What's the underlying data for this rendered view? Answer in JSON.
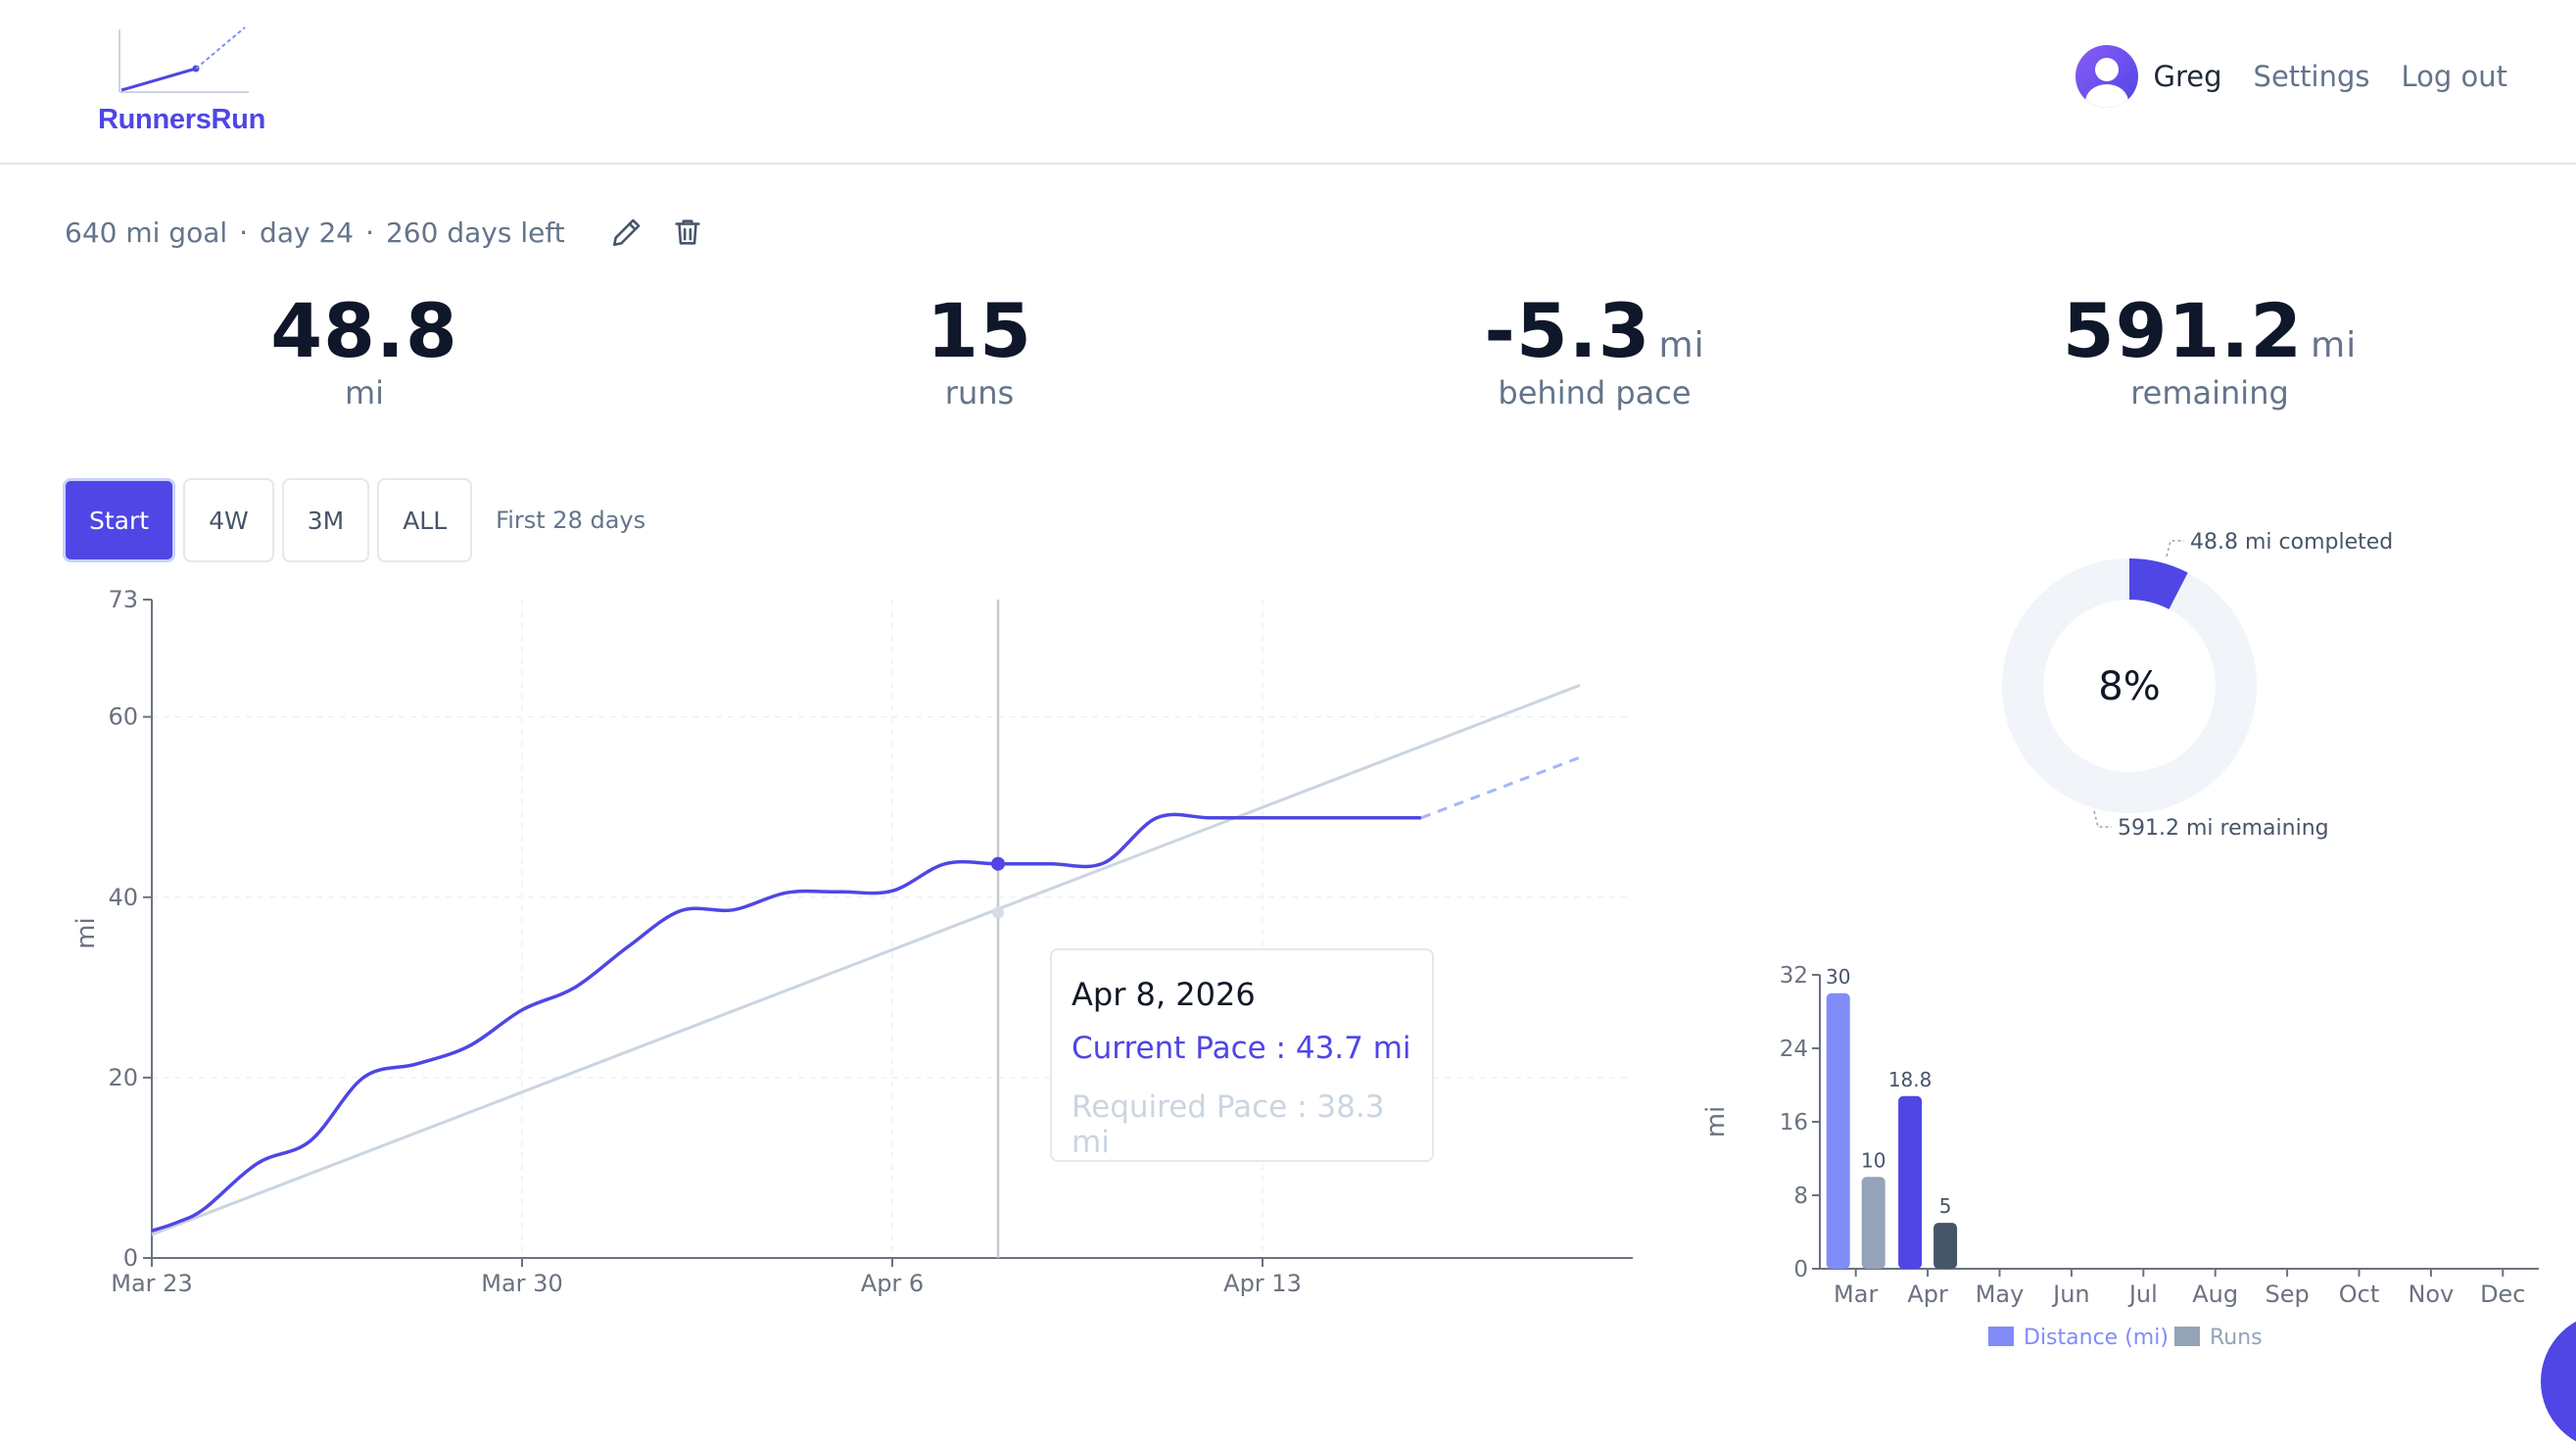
{
  "header": {
    "logo_text": "RunnersRun",
    "user_name": "Greg",
    "settings_label": "Settings",
    "logout_label": "Log out"
  },
  "goal": {
    "goal_text": "640 mi goal",
    "day_text": "day 24",
    "days_left_text": "260 days left",
    "separator": "·"
  },
  "stats": [
    {
      "value": "48.8",
      "unit": "",
      "label": "mi"
    },
    {
      "value": "15",
      "unit": "",
      "label": "runs"
    },
    {
      "value": "-5.3",
      "unit": "mi",
      "label": "behind pace"
    },
    {
      "value": "591.2",
      "unit": "mi",
      "label": "remaining"
    }
  ],
  "range": {
    "buttons": [
      "Start",
      "4W",
      "3M",
      "ALL"
    ],
    "active": "Start",
    "note": "First 28 days"
  },
  "tooltip": {
    "date": "Apr 8, 2026",
    "current": "Current Pace : 43.7 mi",
    "required": "Required Pace : 38.3 mi"
  },
  "donut": {
    "percent_label": "8%",
    "completed_label": "48.8 mi completed",
    "remaining_label": "591.2 mi remaining",
    "fraction": 0.076
  },
  "colors": {
    "accent": "#4f46e5",
    "distance": "#818cf8",
    "runs": "#94a3b8",
    "required": "#cbd5e1"
  },
  "chart_data": [
    {
      "type": "line",
      "ylabel": "mi",
      "xlim_days": [
        0,
        28
      ],
      "ylim": [
        0,
        73
      ],
      "x_ticks": [
        {
          "day": 0,
          "label": "Mar 23"
        },
        {
          "day": 7,
          "label": "Mar 30"
        },
        {
          "day": 14,
          "label": "Apr 6"
        },
        {
          "day": 21,
          "label": "Apr 13"
        }
      ],
      "y_ticks": [
        0,
        20,
        40,
        60,
        73
      ],
      "series": [
        {
          "name": "Current Pace",
          "points": [
            [
              0,
              3
            ],
            [
              0.5,
              4
            ],
            [
              1,
              5.5
            ],
            [
              2,
              10.5
            ],
            [
              3,
              13
            ],
            [
              4,
              20
            ],
            [
              5,
              21.5
            ],
            [
              6,
              23.5
            ],
            [
              7,
              27.5
            ],
            [
              8,
              30
            ],
            [
              9,
              34.5
            ],
            [
              10,
              38.5
            ],
            [
              11,
              38.6
            ],
            [
              12,
              40.5
            ],
            [
              13,
              40.6
            ],
            [
              14,
              40.7
            ],
            [
              15,
              43.7
            ],
            [
              16,
              43.7
            ],
            [
              17,
              43.7
            ],
            [
              18,
              43.8
            ],
            [
              19,
              48.8
            ],
            [
              20,
              48.8
            ],
            [
              21,
              48.8
            ],
            [
              22,
              48.8
            ],
            [
              23,
              48.8
            ],
            [
              24,
              48.8
            ]
          ],
          "projection": [
            [
              24,
              48.8
            ],
            [
              27,
              55.5
            ]
          ]
        },
        {
          "name": "Required Pace",
          "points": [
            [
              0,
              2.6
            ],
            [
              27,
              63.5
            ]
          ]
        }
      ],
      "hover": {
        "day": 16,
        "current": 43.7,
        "required": 38.3
      }
    },
    {
      "type": "bar",
      "ylabel": "mi",
      "ylim": [
        0,
        32
      ],
      "y_ticks": [
        0,
        8,
        16,
        24,
        32
      ],
      "categories": [
        "Mar",
        "Apr",
        "May",
        "Jun",
        "Jul",
        "Aug",
        "Sep",
        "Oct",
        "Nov",
        "Dec"
      ],
      "series": [
        {
          "name": "Distance (mi)",
          "values": [
            30,
            18.8,
            null,
            null,
            null,
            null,
            null,
            null,
            null,
            null
          ],
          "labels": [
            "30",
            "18.8"
          ]
        },
        {
          "name": "Runs",
          "values": [
            10,
            5,
            null,
            null,
            null,
            null,
            null,
            null,
            null,
            null
          ],
          "labels": [
            "10",
            "5"
          ]
        }
      ]
    }
  ]
}
